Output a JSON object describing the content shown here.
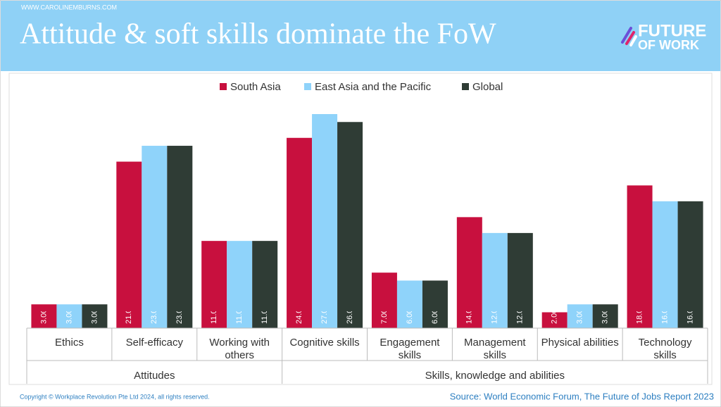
{
  "header": {
    "site": "WWW.CAROLINEMBURNS.COM",
    "title": "Attitude & soft skills dominate the FoW",
    "logo_line1": "FUTURE",
    "logo_line2": "OF WORK"
  },
  "chart_data": {
    "type": "bar",
    "groups": [
      {
        "name": "Attitudes",
        "categories": [
          "Ethics",
          "Self-efficacy",
          "Working with others"
        ]
      },
      {
        "name": "Skills, knowledge and abilities",
        "categories": [
          "Cognitive skills",
          "Engagement skills",
          "Management skills",
          "Physical abilities",
          "Technology skills"
        ]
      }
    ],
    "series": [
      {
        "name": "South Asia",
        "color": "#c8103e",
        "values": [
          3,
          21,
          11,
          24,
          7,
          14,
          2,
          18
        ],
        "value_labels": [
          "3.00%",
          "21.00%",
          "11.00%",
          "24.00%",
          "7.00%",
          "14.00%",
          "2.00%",
          "18.00%"
        ]
      },
      {
        "name": "East Asia and the Pacific",
        "color": "#8fd3fa",
        "values": [
          3,
          23,
          11,
          27,
          6,
          12,
          3,
          16
        ],
        "value_labels": [
          "3.00%",
          "23.00%",
          "11.00%",
          "27.00%",
          "6.00%",
          "12.00%",
          "3.00%",
          "16.00%"
        ]
      },
      {
        "name": "Global",
        "color": "#2f3c35",
        "values": [
          3,
          23,
          11,
          26,
          6,
          12,
          3,
          16
        ],
        "value_labels": [
          "3.00%",
          "23.00%",
          "11.00%",
          "26.00%",
          "6.00%",
          "12.00%",
          "3.00%",
          "16.00%"
        ]
      }
    ],
    "legend": "top"
  },
  "footer": {
    "copyright": "Copyright © Workplace Revolution Pte Ltd 2024, all rights reserved.",
    "source": "Source: World Economic Forum, The Future of Jobs Report 2023"
  }
}
